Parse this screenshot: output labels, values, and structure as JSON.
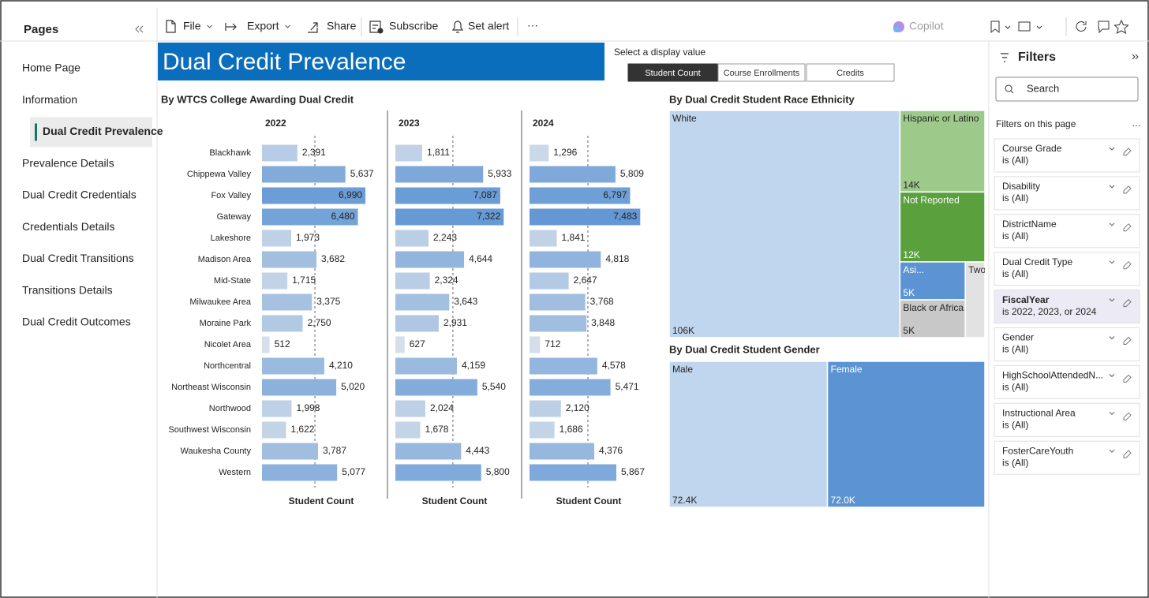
{
  "pages": {
    "title": "Pages",
    "items": [
      "Home Page",
      "Information",
      "Dual Credit Prevalence",
      "Prevalence Details",
      "Dual Credit Credentials",
      "Credentials Details",
      "Dual Credit Transitions",
      "Transitions Details",
      "Dual Credit Outcomes"
    ],
    "active": 2
  },
  "toolbar": {
    "items": [
      "File",
      "Export",
      "Share",
      "Subscribe",
      "Set alert"
    ],
    "copilot": "Copilot"
  },
  "report": {
    "title": "Dual Credit Prevalence",
    "selector": {
      "label": "Select a display value",
      "options": [
        "Student Count",
        "Course Enrollments",
        "Credits"
      ],
      "selected": 0
    }
  },
  "chart_data": [
    {
      "type": "bar",
      "title": "By WTCS College Awarding Dual Credit",
      "axis_label": "Student Count",
      "categories": [
        "Blackhawk",
        "Chippewa Valley",
        "Fox Valley",
        "Gateway",
        "Lakeshore",
        "Madison Area",
        "Mid-State",
        "Milwaukee Area",
        "Moraine Park",
        "Nicolet Area",
        "Northcentral",
        "Northeast Wisconsin",
        "Northwood",
        "Southwest Wisconsin",
        "Waukesha County",
        "Western"
      ],
      "series": [
        {
          "name": "2022",
          "values": [
            2391,
            5637,
            6990,
            6480,
            1973,
            3682,
            1715,
            3375,
            2750,
            512,
            4210,
            5020,
            1998,
            1622,
            3787,
            5077
          ],
          "value_labels": [
            "2,391",
            "5,637",
            "6,990",
            "6,480",
            "1,973",
            "3,682",
            "1,715",
            "3,375",
            "2,750",
            "512",
            "4,210",
            "5,020",
            "1,998",
            "1,622",
            "3,787",
            "5,077"
          ],
          "average": 3576
        },
        {
          "name": "2023",
          "values": [
            1811,
            5933,
            7087,
            7322,
            2243,
            4644,
            2324,
            3643,
            2931,
            627,
            4159,
            5540,
            2024,
            1678,
            4443,
            5800
          ],
          "value_labels": [
            "1,811",
            "5,933",
            "7,087",
            "7,322",
            "2,243",
            "4,644",
            "2,324",
            "3,643",
            "2,931",
            "627",
            "4,159",
            "5,540",
            "2,024",
            "1,678",
            "4,443",
            "5,800"
          ],
          "average": 3888
        },
        {
          "name": "2024",
          "values": [
            1296,
            5809,
            6797,
            7483,
            1841,
            4818,
            2647,
            3768,
            3848,
            712,
            4578,
            5471,
            2120,
            1686,
            4376,
            5867
          ],
          "value_labels": [
            "1,296",
            "5,809",
            "6,797",
            "7,483",
            "1,841",
            "4,818",
            "2,647",
            "3,768",
            "3,848",
            "712",
            "4,578",
            "5,471",
            "2,120",
            "1,686",
            "4,376",
            "5,867"
          ],
          "average": 3945
        }
      ],
      "xlim": [
        0,
        8000
      ],
      "color_scale": [
        "#dfe5ec",
        "#5b93d3"
      ]
    },
    {
      "type": "treemap",
      "title": "By Dual Credit Student Race Ethnicity",
      "categories": [
        "White",
        "Hispanic or Latino",
        "Not Reported",
        "Asi...",
        "Black or Africa...",
        "Two or more r..."
      ],
      "values": [
        106000,
        14000,
        12000,
        5000,
        5000,
        3000
      ],
      "value_labels": [
        "106K",
        "14K",
        "12K",
        "5K",
        "5K",
        null
      ],
      "colors": [
        "#c0d5ee",
        "#9dc98b",
        "#5aa13e",
        "#5b93d3",
        "#c8c8c8",
        "#e2e2e2"
      ]
    },
    {
      "type": "treemap",
      "title": "By Dual Credit Student Gender",
      "categories": [
        "Male",
        "Female"
      ],
      "values": [
        72400,
        72000
      ],
      "value_labels": [
        "72.4K",
        "72.0K"
      ],
      "colors": [
        "#c0d5ee",
        "#5b93d3"
      ]
    }
  ],
  "filters": {
    "title": "Filters",
    "search": "Search",
    "section": "Filters on this page",
    "items": [
      {
        "name": "Course Grade",
        "value": "is (All)"
      },
      {
        "name": "Disability",
        "value": "is (All)"
      },
      {
        "name": "DistrictName",
        "value": "is (All)"
      },
      {
        "name": "Dual Credit Type",
        "value": "is (All)"
      },
      {
        "name": "FiscalYear",
        "value": "is 2022, 2023, or 2024"
      },
      {
        "name": "Gender",
        "value": "is (All)"
      },
      {
        "name": "HighSchoolAttendedN...",
        "value": "is (All)"
      },
      {
        "name": "Instructional Area",
        "value": "is (All)"
      },
      {
        "name": "FosterCareYouth",
        "value": "is (All)"
      }
    ],
    "active": 4
  }
}
